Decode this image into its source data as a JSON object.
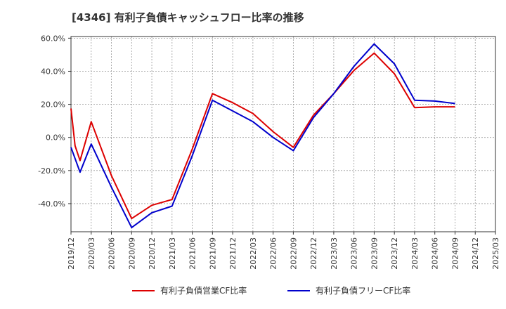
{
  "chart_data": {
    "type": "line",
    "title": "[4346]  有利子負債キャッシュフロー比率の推移",
    "xlabel": "",
    "ylabel": "",
    "ylim": [
      -57,
      61
    ],
    "y_ticks": [
      60,
      40,
      20,
      0,
      -20,
      -40
    ],
    "y_tick_labels": [
      "60.0%",
      "40.0%",
      "20.0%",
      "0.0%",
      "-20.0%",
      "-40.0%"
    ],
    "x_tick_labels": [
      "2019/12",
      "2020/03",
      "2020/06",
      "2020/09",
      "2020/12",
      "2021/03",
      "2021/06",
      "2021/09",
      "2021/12",
      "2022/03",
      "2022/06",
      "2022/09",
      "2022/12",
      "2023/03",
      "2023/06",
      "2023/09",
      "2023/12",
      "2024/03",
      "2024/06",
      "2024/09",
      "2024/12",
      "2025/03"
    ],
    "grid": true,
    "legend_position": "bottom",
    "x": [
      "2019/12",
      "2020/03",
      "2020/06",
      "2020/09",
      "2020/12",
      "2021/03",
      "2021/06",
      "2021/09",
      "2021/12",
      "2022/03",
      "2022/06",
      "2022/09",
      "2022/12",
      "2023/03",
      "2023/06",
      "2023/09",
      "2023/12",
      "2024/03",
      "2024/06",
      "2024/09"
    ],
    "series": [
      {
        "name": "有利子負債営業CF比率",
        "color": "#dd0000",
        "values": [
          17.5,
          9.5,
          -23,
          -49,
          -41,
          -37.5,
          -7,
          26.5,
          21,
          14.5,
          3.5,
          -6,
          13.5,
          26.5,
          40.5,
          51,
          38.5,
          18,
          18.5,
          18.5
        ],
        "knees": [
          {
            "x": 0.2,
            "y": -5
          },
          {
            "x": 0.45,
            "y": -14
          }
        ]
      },
      {
        "name": "有利子負債フリーCF比率",
        "color": "#0000cc",
        "values": [
          -6,
          -4,
          -30,
          -54.5,
          -45.5,
          -41.5,
          -11,
          22.5,
          16,
          9.5,
          0,
          -8,
          12,
          26.5,
          43,
          56.5,
          44.5,
          22.5,
          22,
          20.5
        ],
        "knees": [
          {
            "x": 0.45,
            "y": -21
          }
        ]
      }
    ]
  }
}
